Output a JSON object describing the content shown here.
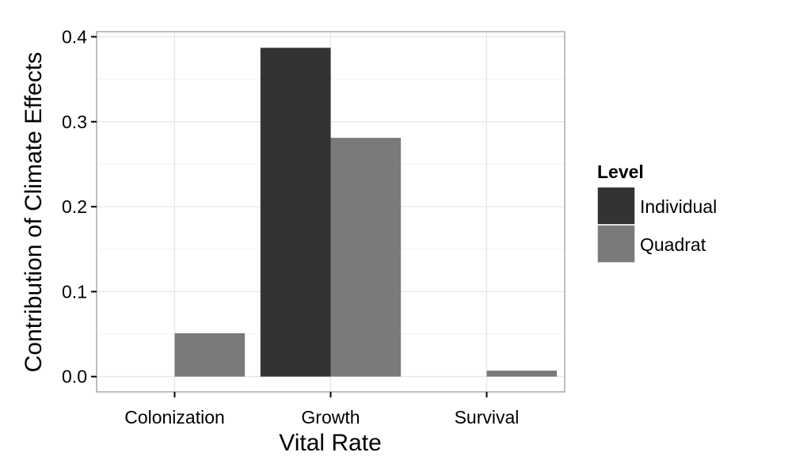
{
  "chart_data": {
    "type": "bar",
    "title": "",
    "xlabel": "Vital Rate",
    "ylabel": "Contribution of Climate Effects",
    "categories": [
      "Colonization",
      "Growth",
      "Survival"
    ],
    "series": [
      {
        "name": "Individual",
        "color": "#333333",
        "values": [
          null,
          0.387,
          null
        ]
      },
      {
        "name": "Quadrat",
        "color": "#7a7a7a",
        "values": [
          0.051,
          0.281,
          0.007
        ]
      }
    ],
    "ylim": [
      -0.018,
      0.406
    ],
    "yticks": [
      0.0,
      0.1,
      0.2,
      0.3,
      0.4
    ],
    "ytick_labels": [
      "0.0",
      "0.1",
      "0.2",
      "0.3",
      "0.4"
    ],
    "grid": true,
    "legend": {
      "title": "Level",
      "position": "right"
    }
  }
}
